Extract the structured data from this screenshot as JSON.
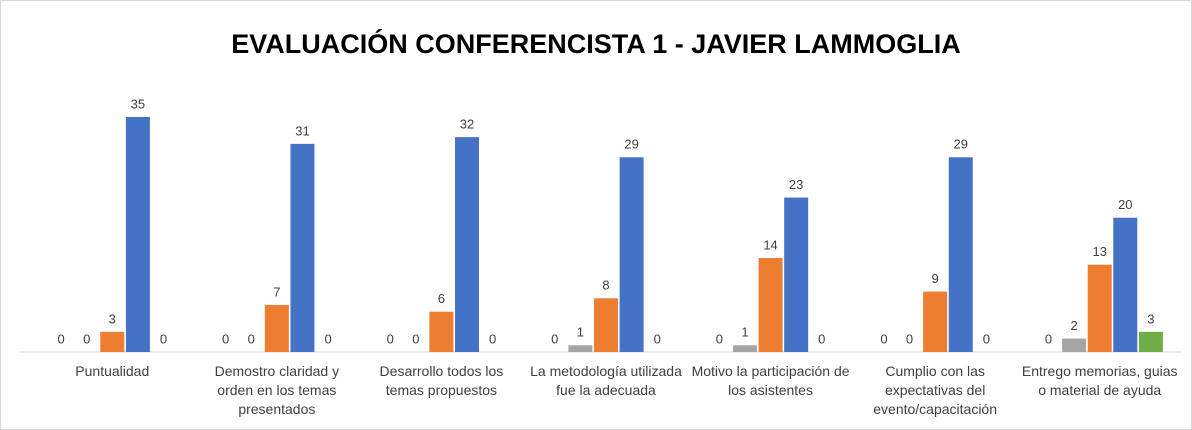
{
  "chart_data": {
    "type": "bar",
    "title": "EVALUACIÓN CONFERENCISTA 1 - JAVIER LAMMOGLIA",
    "categories": [
      "Puntualidad",
      "Demostro claridad y orden en los temas presentados",
      "Desarrollo todos los temas propuestos",
      "La metodología utilizada fue la adecuada",
      "Motivo la participación de los asistentes",
      "Cumplio con las expectativas del evento/capacitación",
      "Entrego memorias, guias o material de ayuda"
    ],
    "series": [
      {
        "color": "#ffc000",
        "values": [
          0,
          0,
          0,
          0,
          0,
          0,
          0
        ]
      },
      {
        "color": "#a5a5a5",
        "values": [
          0,
          0,
          0,
          1,
          1,
          0,
          2
        ]
      },
      {
        "color": "#ed7d31",
        "values": [
          3,
          7,
          6,
          8,
          14,
          9,
          13
        ]
      },
      {
        "color": "#4472c4",
        "values": [
          35,
          31,
          32,
          29,
          23,
          29,
          20
        ]
      },
      {
        "color": "#70ad47",
        "values": [
          0,
          0,
          0,
          0,
          0,
          0,
          3
        ]
      }
    ]
  }
}
